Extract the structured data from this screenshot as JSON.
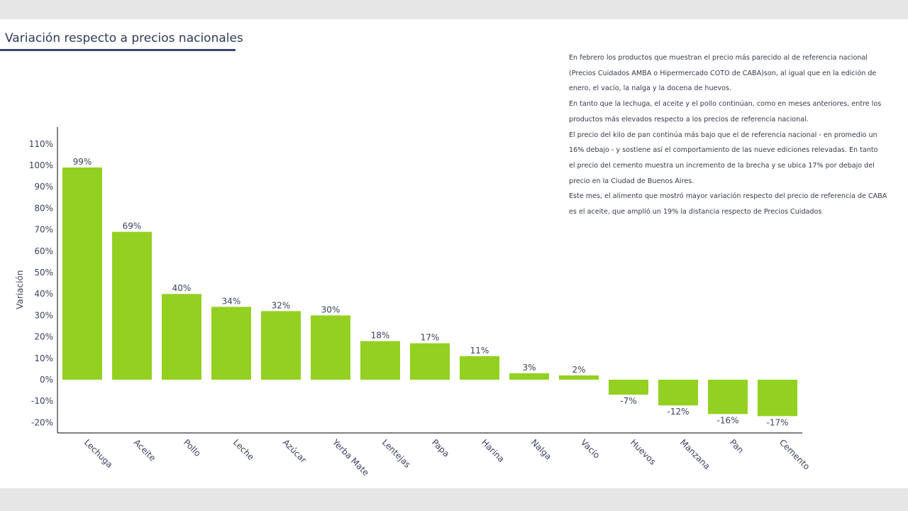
{
  "section_title": "Variación respecto a precios nacionales",
  "notes": [
    "En febrero los productos que muestran el precio más parecido al de referencia nacional",
    "(Precios Cuidados AMBA o Hipermercado COTO de CABA)son, al igual que en la edición de",
    "enero, el vacío, la nalga y la docena de huevos.",
    "En tanto que la lechuga, el aceite y el pollo continúan, como en meses anteriores, entre los",
    "productos más elevados respecto a los precios de referencia nacional.",
    "El precio del kilo de pan continúa más bajo que el de referencia nacional - en promedio un",
    "16% debajo - y sostiene así el comportamiento de las nueve ediciones relevadas. En tanto",
    "el precio del cemento muestra un incremento de la brecha y se ubica 17% por debajo del",
    "precio en la Ciudad de Buenos Aires.",
    "Este mes, el alimento que mostró mayor variación respecto del precio de referencia de CABA",
    "es el aceite, que amplió un 19% la distancia respecto de Precios Cuidados"
  ],
  "chart_data": {
    "type": "bar",
    "title": "",
    "xlabel": "",
    "ylabel": "Variación",
    "categories": [
      "Lechuga",
      "Aceite",
      "Pollo",
      "Leche",
      "Azúcar",
      "Yerba Mate",
      "Lentejas",
      "Papa",
      "Harina",
      "Nalga",
      "Vacío",
      "Huevos",
      "Manzana",
      "Pan",
      "Cemento"
    ],
    "values": [
      99,
      69,
      40,
      34,
      32,
      30,
      18,
      17,
      11,
      3,
      2,
      -7,
      -12,
      -16,
      -17
    ],
    "data_labels": [
      "99%",
      "69%",
      "40%",
      "34%",
      "32%",
      "30%",
      "18%",
      "17%",
      "11%",
      "3%",
      "2%",
      "-7%",
      "-12%",
      "-16%",
      "-17%"
    ],
    "y_ticks": [
      110,
      100,
      90,
      80,
      70,
      60,
      50,
      40,
      30,
      20,
      10,
      0,
      -10,
      -20
    ],
    "y_tick_labels": [
      "110%",
      "100%",
      "90%",
      "80%",
      "70%",
      "60%",
      "50%",
      "40%",
      "30%",
      "20%",
      "10%",
      "0%",
      "-10%",
      "-20%"
    ],
    "ylim": [
      -25,
      118
    ],
    "grid": false,
    "legend": "none",
    "bar_color": "#94d021",
    "axis_color": "#333333",
    "label_color": "#3a4260"
  }
}
